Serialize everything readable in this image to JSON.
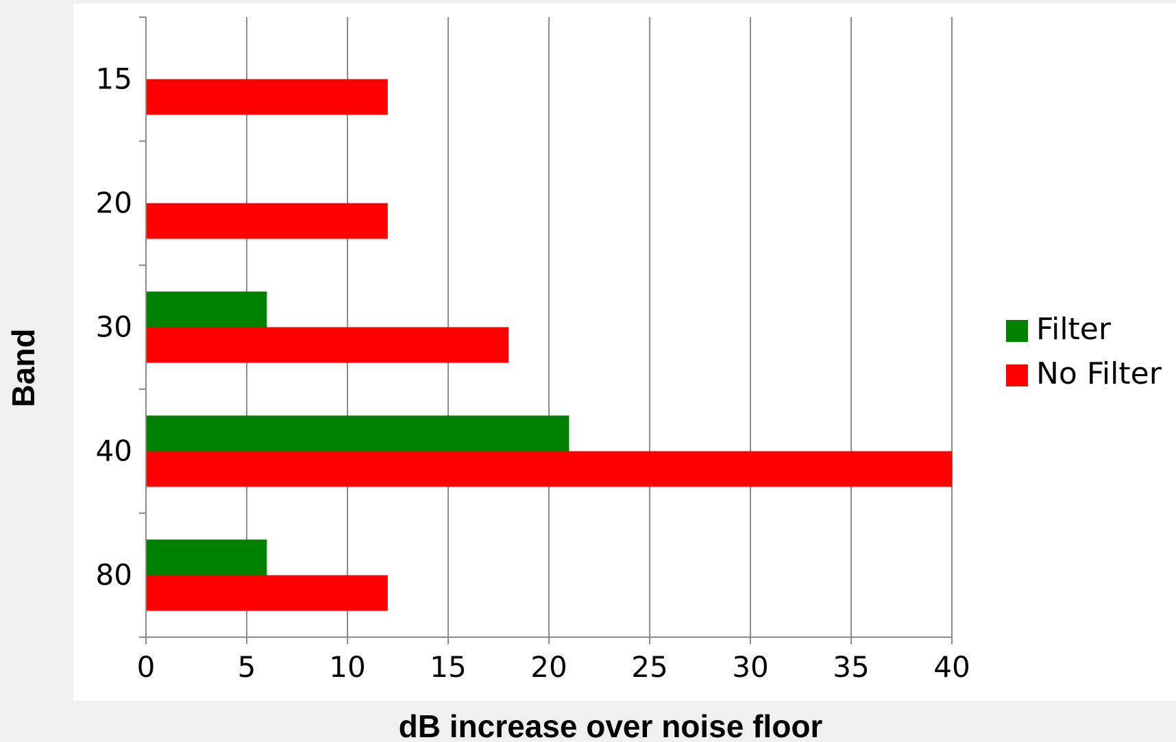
{
  "chart_data": {
    "type": "bar",
    "orientation": "horizontal",
    "categories": [
      "15",
      "20",
      "30",
      "40",
      "80"
    ],
    "series": [
      {
        "name": "Filter",
        "color": "#008000",
        "values": [
          0,
          0,
          6,
          21,
          6
        ]
      },
      {
        "name": "No Filter",
        "color": "#ff0000",
        "values": [
          12,
          12,
          18,
          40,
          12
        ]
      }
    ],
    "xlabel": "dB increase over noise floor",
    "ylabel": "Band",
    "xlim": [
      0,
      40
    ],
    "xticks": [
      "0",
      "5",
      "10",
      "15",
      "20",
      "25",
      "30",
      "35",
      "40"
    ],
    "grid": "vertical",
    "legend": "right"
  }
}
